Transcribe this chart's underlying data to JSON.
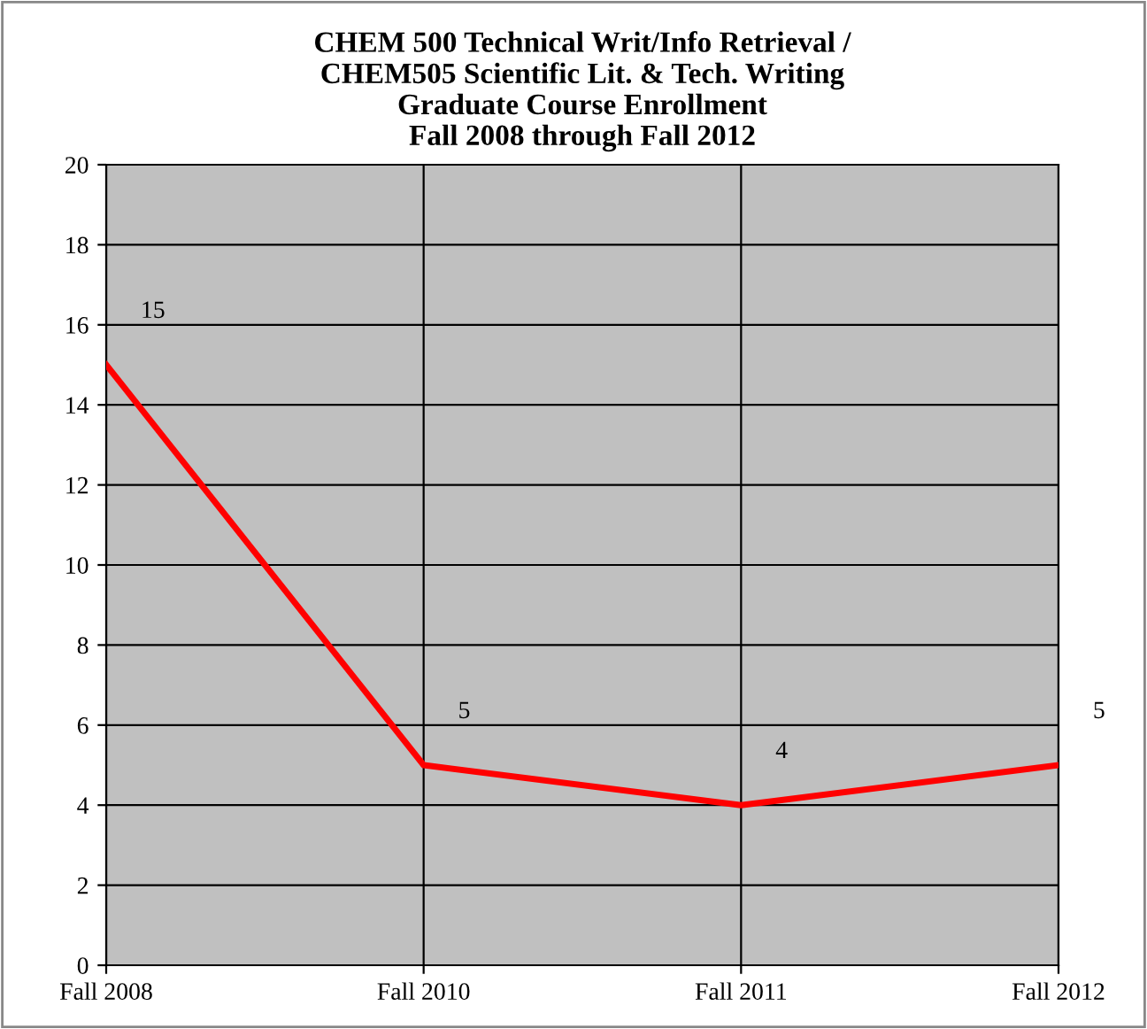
{
  "chart_data": {
    "type": "line",
    "title": "CHEM 500 Technical Writ/Info Retrieval /\nCHEM505 Scientific Lit. & Tech. Writing\nGraduate Course Enrollment\nFall 2008 through Fall 2012",
    "categories": [
      "Fall 2008",
      "Fall 2010",
      "Fall 2011",
      "Fall 2012"
    ],
    "series": [
      {
        "color": "#ff0000",
        "values": [
          15,
          5,
          4,
          5
        ]
      }
    ],
    "ylim": [
      0,
      20
    ],
    "yticks": [
      0,
      2,
      4,
      6,
      8,
      10,
      12,
      14,
      16,
      18,
      20
    ],
    "grid": true,
    "data_labels": true,
    "marker": "none",
    "line_style": "solid"
  }
}
